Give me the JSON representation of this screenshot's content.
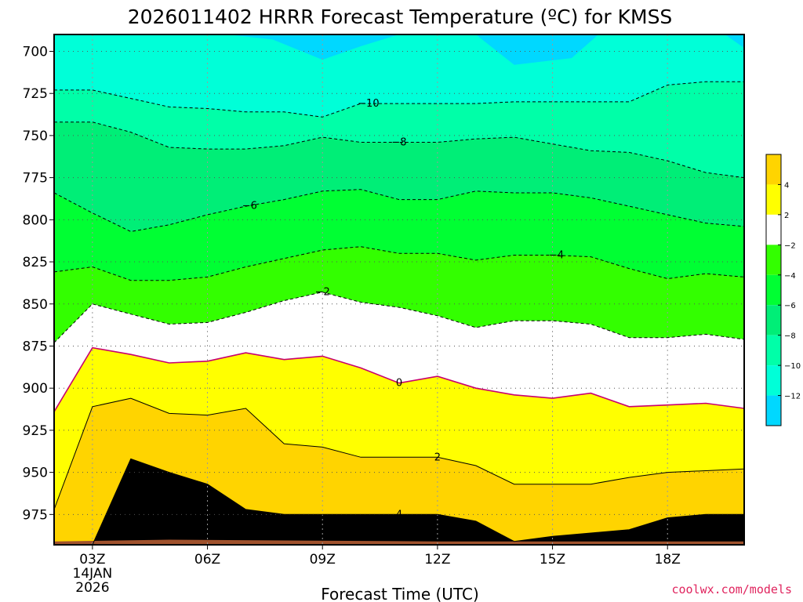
{
  "chart_data": {
    "type": "contour",
    "title": "2026011402 HRRR Forecast Temperature (ºC) for KMSS",
    "xlabel": "Forecast Time (UTC)",
    "credit": "coolwx.com/models",
    "y_axis": {
      "ticks": [
        "700",
        "725",
        "750",
        "775",
        "800",
        "825",
        "850",
        "875",
        "900",
        "925",
        "950",
        "975"
      ],
      "values": [
        700,
        725,
        750,
        775,
        800,
        825,
        850,
        875,
        900,
        925,
        950,
        975
      ],
      "range": [
        690,
        993
      ]
    },
    "x_axis": {
      "ticks": [
        "03Z",
        "06Z",
        "09Z",
        "12Z",
        "15Z",
        "18Z"
      ],
      "hours": [
        3,
        6,
        9,
        12,
        15,
        18
      ],
      "first_tick_date": [
        "14JAN",
        "2026"
      ],
      "range": [
        2,
        20
      ]
    },
    "grid": true,
    "legend_position": "right",
    "colorbar": {
      "colors": [
        "#ffd400",
        "#ffff00",
        "#ffffff",
        "#33ff00",
        "#00ff33",
        "#00ee77",
        "#00ffa8",
        "#00ffd8",
        "#00d8ff"
      ],
      "labels": [
        "4",
        "2",
        "−2",
        "−4",
        "−6",
        "−8",
        "−10",
        "−12"
      ]
    },
    "time_hours": [
      2,
      3,
      4,
      5,
      6,
      7,
      8,
      9,
      10,
      11,
      12,
      13,
      14,
      15,
      16,
      17,
      18,
      19,
      20
    ],
    "isotherms": [
      {
        "level": -10,
        "label": "−10",
        "label_at": 10.2,
        "style": "dashed",
        "pressures": [
          723,
          723,
          728,
          733,
          734,
          736,
          736,
          739,
          731,
          731,
          731,
          731,
          730,
          730,
          730,
          730,
          720,
          718,
          718
        ]
      },
      {
        "level": -8,
        "label": "−8",
        "label_at": 11.0,
        "style": "dashed",
        "pressures": [
          742,
          742,
          748,
          757,
          758,
          758,
          756,
          751,
          754,
          754,
          754,
          752,
          751,
          755,
          759,
          760,
          765,
          772,
          775
        ]
      },
      {
        "level": -6,
        "label": "−6",
        "label_at": 7.1,
        "style": "dashed",
        "pressures": [
          784,
          796,
          807,
          803,
          797,
          792,
          788,
          783,
          782,
          788,
          788,
          783,
          784,
          784,
          787,
          792,
          797,
          802,
          804
        ]
      },
      {
        "level": -4,
        "label": "−4",
        "label_at": 15.1,
        "style": "dashed",
        "pressures": [
          831,
          828,
          836,
          836,
          834,
          828,
          823,
          818,
          816,
          820,
          820,
          824,
          821,
          821,
          822,
          829,
          835,
          832,
          834
        ]
      },
      {
        "level": -2,
        "label": "−2",
        "label_at": 9.0,
        "style": "dashed",
        "pressures": [
          873,
          850,
          856,
          862,
          861,
          855,
          848,
          843,
          849,
          852,
          857,
          864,
          860,
          860,
          862,
          870,
          870,
          868,
          871
        ]
      },
      {
        "level": 0,
        "label": "0",
        "label_at": 11.0,
        "style": "solid",
        "pressures": [
          914,
          876,
          880,
          885,
          884,
          879,
          883,
          881,
          888,
          897,
          893,
          900,
          904,
          906,
          903,
          911,
          910,
          909,
          912
        ]
      },
      {
        "level": 2,
        "label": "2",
        "label_at": 12.0,
        "style": "solid",
        "pressures": [
          972,
          911,
          906,
          915,
          916,
          912,
          933,
          935,
          941,
          941,
          941,
          946,
          957,
          957,
          957,
          953,
          950,
          949,
          948
        ]
      },
      {
        "level": 4,
        "label": "4",
        "label_at": 11.0,
        "style": "solid",
        "pressures": [
          993,
          993,
          942,
          950,
          957,
          972,
          975,
          975,
          975,
          975,
          975,
          979,
          991,
          988,
          986,
          984,
          977,
          975,
          975
        ]
      }
    ]
  }
}
